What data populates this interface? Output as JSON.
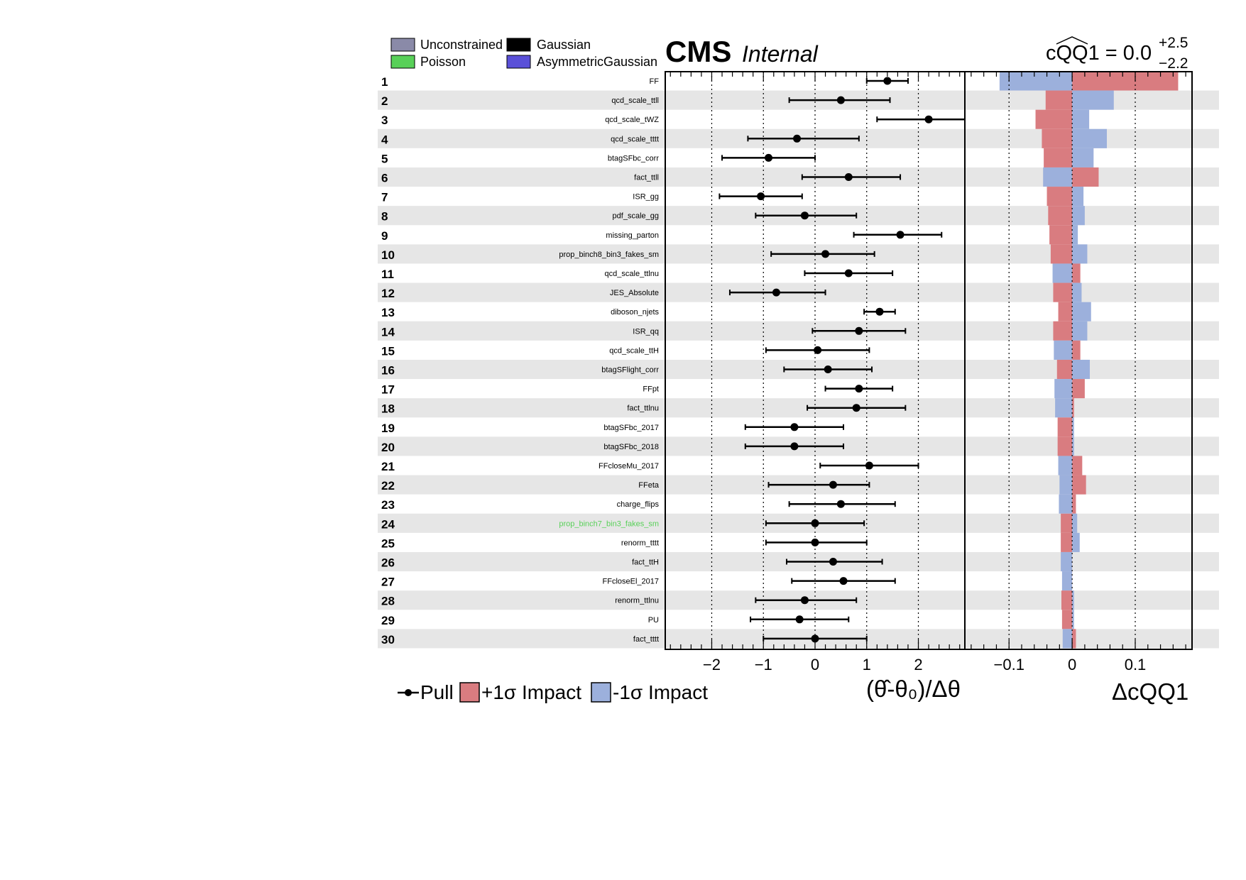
{
  "header": {
    "cms": "CMS",
    "internal": "Internal",
    "poi_label": "cQQ̃1",
    "poi_text_main": "cQQ1 = 0.0",
    "poi_err_up": "+2.5",
    "poi_err_down": "−2.2"
  },
  "legend_top": [
    {
      "label": "Unconstrained",
      "color": "#8a8aa8"
    },
    {
      "label": "Gaussian",
      "color": "#000000"
    },
    {
      "label": "Poisson",
      "color": "#58d058"
    },
    {
      "label": "AsymmetricGaussian",
      "color": "#5a50d8"
    }
  ],
  "legend_bottom": {
    "pull": "Pull",
    "plus_impact": "+1σ Impact",
    "minus_impact": "-1σ Impact"
  },
  "axes": {
    "pull_xlabel": "(θ̂-θ₀)/Δθ",
    "impact_xlabel": "ΔcQQ1",
    "pull_ticks": [
      "−2",
      "−1",
      "0",
      "1",
      "2"
    ],
    "impact_ticks": [
      "−0.1",
      "0",
      "0.1"
    ]
  },
  "colors": {
    "plus_impact": "#d97c80",
    "minus_impact": "#9cb0dc",
    "stripe": "#e6e6e6",
    "poisson_text": "#58d058"
  },
  "chart_data": [
    {
      "type": "scatter",
      "title": "",
      "xlabel": "(θ̂-θ₀)/Δθ",
      "xlim": [
        -2.9,
        2.9
      ],
      "grid": "dotted vertical at -2,-1,0,1,2",
      "series": [
        {
          "name": "Pull",
          "points": [
            {
              "rank": 1,
              "label": "FF",
              "x": 1.4,
              "lo": 1.0,
              "hi": 1.8
            },
            {
              "rank": 2,
              "label": "qcd_scale_ttll",
              "x": 0.5,
              "lo": -0.5,
              "hi": 1.45
            },
            {
              "rank": 3,
              "label": "qcd_scale_tWZ",
              "x": 2.2,
              "lo": 1.2,
              "hi": 2.9
            },
            {
              "rank": 4,
              "label": "qcd_scale_tttt",
              "x": -0.35,
              "lo": -1.3,
              "hi": 0.85
            },
            {
              "rank": 5,
              "label": "btagSFbc_corr",
              "x": -0.9,
              "lo": -1.8,
              "hi": 0.0
            },
            {
              "rank": 6,
              "label": "fact_ttll",
              "x": 0.65,
              "lo": -0.25,
              "hi": 1.65
            },
            {
              "rank": 7,
              "label": "ISR_gg",
              "x": -1.05,
              "lo": -1.85,
              "hi": -0.25
            },
            {
              "rank": 8,
              "label": "pdf_scale_gg",
              "x": -0.2,
              "lo": -1.15,
              "hi": 0.8
            },
            {
              "rank": 9,
              "label": "missing_parton",
              "x": 1.65,
              "lo": 0.75,
              "hi": 2.45
            },
            {
              "rank": 10,
              "label": "prop_binch8_bin3_fakes_sm",
              "x": 0.2,
              "lo": -0.85,
              "hi": 1.15
            },
            {
              "rank": 11,
              "label": "qcd_scale_ttlnu",
              "x": 0.65,
              "lo": -0.2,
              "hi": 1.5
            },
            {
              "rank": 12,
              "label": "JES_Absolute",
              "x": -0.75,
              "lo": -1.65,
              "hi": 0.2
            },
            {
              "rank": 13,
              "label": "diboson_njets",
              "x": 1.25,
              "lo": 0.95,
              "hi": 1.55
            },
            {
              "rank": 14,
              "label": "ISR_qq",
              "x": 0.85,
              "lo": -0.05,
              "hi": 1.75
            },
            {
              "rank": 15,
              "label": "qcd_scale_ttH",
              "x": 0.05,
              "lo": -0.95,
              "hi": 1.05
            },
            {
              "rank": 16,
              "label": "btagSFlight_corr",
              "x": 0.25,
              "lo": -0.6,
              "hi": 1.1
            },
            {
              "rank": 17,
              "label": "FFpt",
              "x": 0.85,
              "lo": 0.2,
              "hi": 1.5
            },
            {
              "rank": 18,
              "label": "fact_ttlnu",
              "x": 0.8,
              "lo": -0.15,
              "hi": 1.75
            },
            {
              "rank": 19,
              "label": "btagSFbc_2017",
              "x": -0.4,
              "lo": -1.35,
              "hi": 0.55
            },
            {
              "rank": 20,
              "label": "btagSFbc_2018",
              "x": -0.4,
              "lo": -1.35,
              "hi": 0.55
            },
            {
              "rank": 21,
              "label": "FFcloseMu_2017",
              "x": 1.05,
              "lo": 0.1,
              "hi": 2.0
            },
            {
              "rank": 22,
              "label": "FFeta",
              "x": 0.35,
              "lo": -0.9,
              "hi": 1.05
            },
            {
              "rank": 23,
              "label": "charge_flips",
              "x": 0.5,
              "lo": -0.5,
              "hi": 1.55
            },
            {
              "rank": 24,
              "label": "prop_binch7_bin3_fakes_sm",
              "x": 0.0,
              "lo": -0.95,
              "hi": 0.95,
              "constraint": "Poisson"
            },
            {
              "rank": 25,
              "label": "renorm_tttt",
              "x": 0.0,
              "lo": -0.95,
              "hi": 1.0
            },
            {
              "rank": 26,
              "label": "fact_ttH",
              "x": 0.35,
              "lo": -0.55,
              "hi": 1.3
            },
            {
              "rank": 27,
              "label": "FFcloseEl_2017",
              "x": 0.55,
              "lo": -0.45,
              "hi": 1.55
            },
            {
              "rank": 28,
              "label": "renorm_ttlnu",
              "x": -0.2,
              "lo": -1.15,
              "hi": 0.8
            },
            {
              "rank": 29,
              "label": "PU",
              "x": -0.3,
              "lo": -1.25,
              "hi": 0.65
            },
            {
              "rank": 30,
              "label": "fact_tttt",
              "x": 0.0,
              "lo": -1.0,
              "hi": 1.0
            }
          ]
        }
      ]
    },
    {
      "type": "bar",
      "title": "",
      "xlabel": "ΔcQQ1",
      "xlim": [
        -0.17,
        0.19
      ],
      "grid": "dotted vertical at -0.1,0,0.1",
      "series": [
        {
          "name": "+1σ Impact",
          "values": [
            0.168,
            -0.042,
            -0.058,
            -0.048,
            -0.045,
            0.042,
            -0.04,
            -0.038,
            -0.036,
            -0.034,
            0.013,
            -0.03,
            -0.022,
            -0.03,
            0.013,
            -0.024,
            0.02,
            0.003,
            -0.023,
            -0.023,
            0.016,
            0.022,
            0.006,
            -0.018,
            -0.018,
            -0.003,
            -0.002,
            -0.017,
            -0.016,
            0.006
          ]
        },
        {
          "name": "-1σ Impact",
          "values": [
            -0.115,
            0.066,
            0.027,
            0.055,
            0.034,
            -0.046,
            0.018,
            0.02,
            0.009,
            0.024,
            -0.031,
            0.015,
            0.03,
            0.024,
            -0.029,
            0.028,
            -0.028,
            -0.027,
            0.003,
            0.003,
            -0.022,
            -0.02,
            -0.021,
            0.008,
            0.012,
            -0.018,
            -0.016,
            0.003,
            0.003,
            -0.015
          ]
        }
      ],
      "categories": [
        "FF",
        "qcd_scale_ttll",
        "qcd_scale_tWZ",
        "qcd_scale_tttt",
        "btagSFbc_corr",
        "fact_ttll",
        "ISR_gg",
        "pdf_scale_gg",
        "missing_parton",
        "prop_binch8_bin3_fakes_sm",
        "qcd_scale_ttlnu",
        "JES_Absolute",
        "diboson_njets",
        "ISR_qq",
        "qcd_scale_ttH",
        "btagSFlight_corr",
        "FFpt",
        "fact_ttlnu",
        "btagSFbc_2017",
        "btagSFbc_2018",
        "FFcloseMu_2017",
        "FFeta",
        "charge_flips",
        "prop_binch7_bin3_fakes_sm",
        "renorm_tttt",
        "fact_ttH",
        "FFcloseEl_2017",
        "renorm_ttlnu",
        "PU",
        "fact_tttt"
      ]
    }
  ]
}
